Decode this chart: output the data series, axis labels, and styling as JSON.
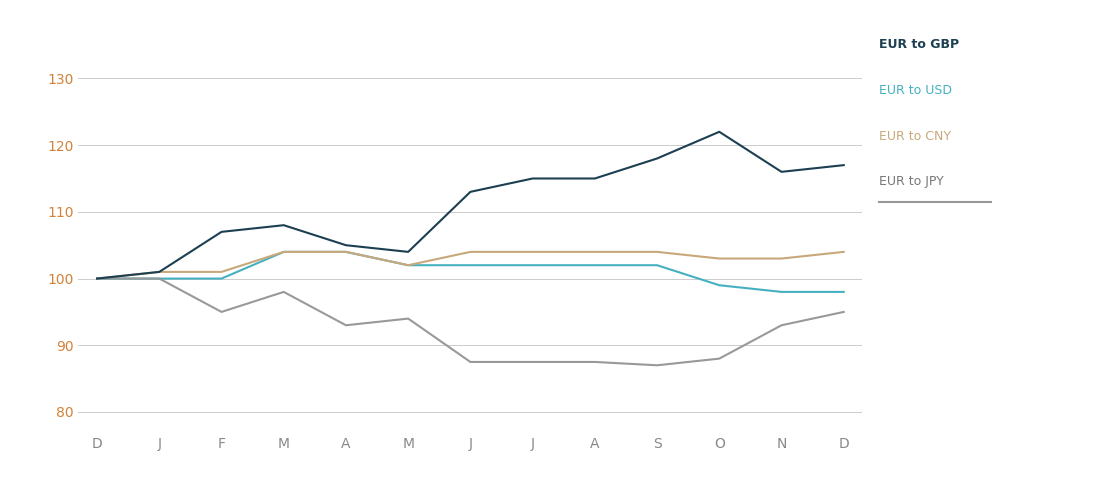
{
  "months": [
    "D",
    "J",
    "F",
    "M",
    "A",
    "M",
    "J",
    "J",
    "A",
    "S",
    "O",
    "N",
    "D"
  ],
  "eur_gbp": [
    100,
    101,
    107,
    108,
    105,
    104,
    113,
    115,
    115,
    118,
    122,
    116,
    117
  ],
  "eur_usd": [
    100,
    100,
    100,
    104,
    104,
    102,
    102,
    102,
    102,
    102,
    99,
    98,
    98
  ],
  "eur_cny": [
    100,
    101,
    101,
    104,
    104,
    102,
    104,
    104,
    104,
    104,
    103,
    103,
    104
  ],
  "eur_jpy": [
    100,
    100,
    95,
    98,
    93,
    94,
    87.5,
    87.5,
    87.5,
    87,
    88,
    93,
    95
  ],
  "colors": {
    "eur_gbp": "#1c3f52",
    "eur_usd": "#45b0c0",
    "eur_cny": "#c8a87a",
    "eur_jpy": "#999999"
  },
  "legend_labels": [
    "EUR to GBP",
    "EUR to USD",
    "EUR to CNY",
    "EUR to JPY"
  ],
  "legend_colors": [
    "#1c3f52",
    "#45b0c0",
    "#c8a87a",
    "#777777"
  ],
  "legend_fontweights": [
    "bold",
    "normal",
    "normal",
    "normal"
  ],
  "yticks": [
    80,
    90,
    100,
    110,
    120,
    130
  ],
  "ytick_color": "#d4823a",
  "xtick_color": "#888888",
  "ylim": [
    77,
    136
  ],
  "background_color": "#ffffff",
  "grid_color": "#cccccc",
  "linewidth": 1.5
}
